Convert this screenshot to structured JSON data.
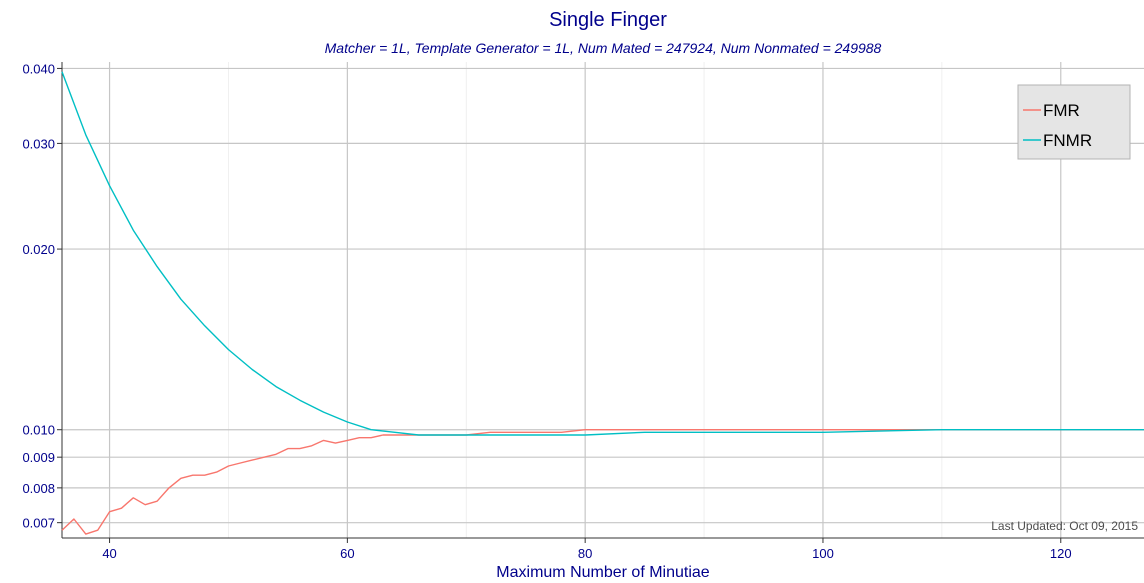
{
  "chart_data": {
    "type": "line",
    "title": "Single Finger",
    "subtitle": "Matcher = 1L,   Template Generator = 1L,   Num Mated = 247924,   Num Nonmated = 249988",
    "xlabel": "Maximum Number of Minutiae",
    "ylabel": "",
    "xlim": [
      36,
      127
    ],
    "ylim": [
      0.0066,
      0.041
    ],
    "y_scale": "log",
    "x_ticks": [
      "40",
      "60",
      "80",
      "100",
      "120"
    ],
    "y_ticks": [
      "0.007",
      "0.008",
      "0.009",
      "0.010",
      "0.020",
      "0.030",
      "0.040"
    ],
    "grid": true,
    "legend_position": "top-right",
    "footnote": "Last Updated: Oct 09, 2015",
    "series": [
      {
        "name": "FMR",
        "color": "#f8766d",
        "x": [
          36,
          37,
          38,
          39,
          40,
          41,
          42,
          43,
          44,
          45,
          46,
          47,
          48,
          49,
          50,
          51,
          52,
          53,
          54,
          55,
          56,
          57,
          58,
          59,
          60,
          61,
          62,
          63,
          64,
          65,
          66,
          67,
          68,
          69,
          70,
          72,
          74,
          76,
          78,
          80,
          85,
          90,
          95,
          100,
          105,
          110,
          115,
          120,
          127
        ],
        "y": [
          0.0068,
          0.0071,
          0.0067,
          0.0068,
          0.0073,
          0.0074,
          0.0077,
          0.0075,
          0.0076,
          0.008,
          0.0083,
          0.0084,
          0.0084,
          0.0085,
          0.0087,
          0.0088,
          0.0089,
          0.009,
          0.0091,
          0.0093,
          0.0093,
          0.0094,
          0.0096,
          0.0095,
          0.0096,
          0.0097,
          0.0097,
          0.0098,
          0.0098,
          0.0098,
          0.0098,
          0.0098,
          0.0098,
          0.0098,
          0.0098,
          0.0099,
          0.0099,
          0.0099,
          0.0099,
          0.01,
          0.01,
          0.01,
          0.01,
          0.01,
          0.01,
          0.01,
          0.01,
          0.01,
          0.01
        ]
      },
      {
        "name": "FNMR",
        "color": "#00bfc4",
        "x": [
          36,
          38,
          40,
          42,
          44,
          46,
          48,
          50,
          52,
          54,
          56,
          58,
          60,
          62,
          64,
          66,
          68,
          70,
          72,
          74,
          76,
          78,
          80,
          85,
          90,
          95,
          100,
          110,
          120,
          127
        ],
        "y": [
          0.0395,
          0.031,
          0.0255,
          0.0215,
          0.0187,
          0.0165,
          0.0149,
          0.0136,
          0.0126,
          0.0118,
          0.0112,
          0.0107,
          0.0103,
          0.01,
          0.0099,
          0.0098,
          0.0098,
          0.0098,
          0.0098,
          0.0098,
          0.0098,
          0.0098,
          0.0098,
          0.0099,
          0.0099,
          0.0099,
          0.0099,
          0.01,
          0.01,
          0.01
        ]
      }
    ]
  }
}
